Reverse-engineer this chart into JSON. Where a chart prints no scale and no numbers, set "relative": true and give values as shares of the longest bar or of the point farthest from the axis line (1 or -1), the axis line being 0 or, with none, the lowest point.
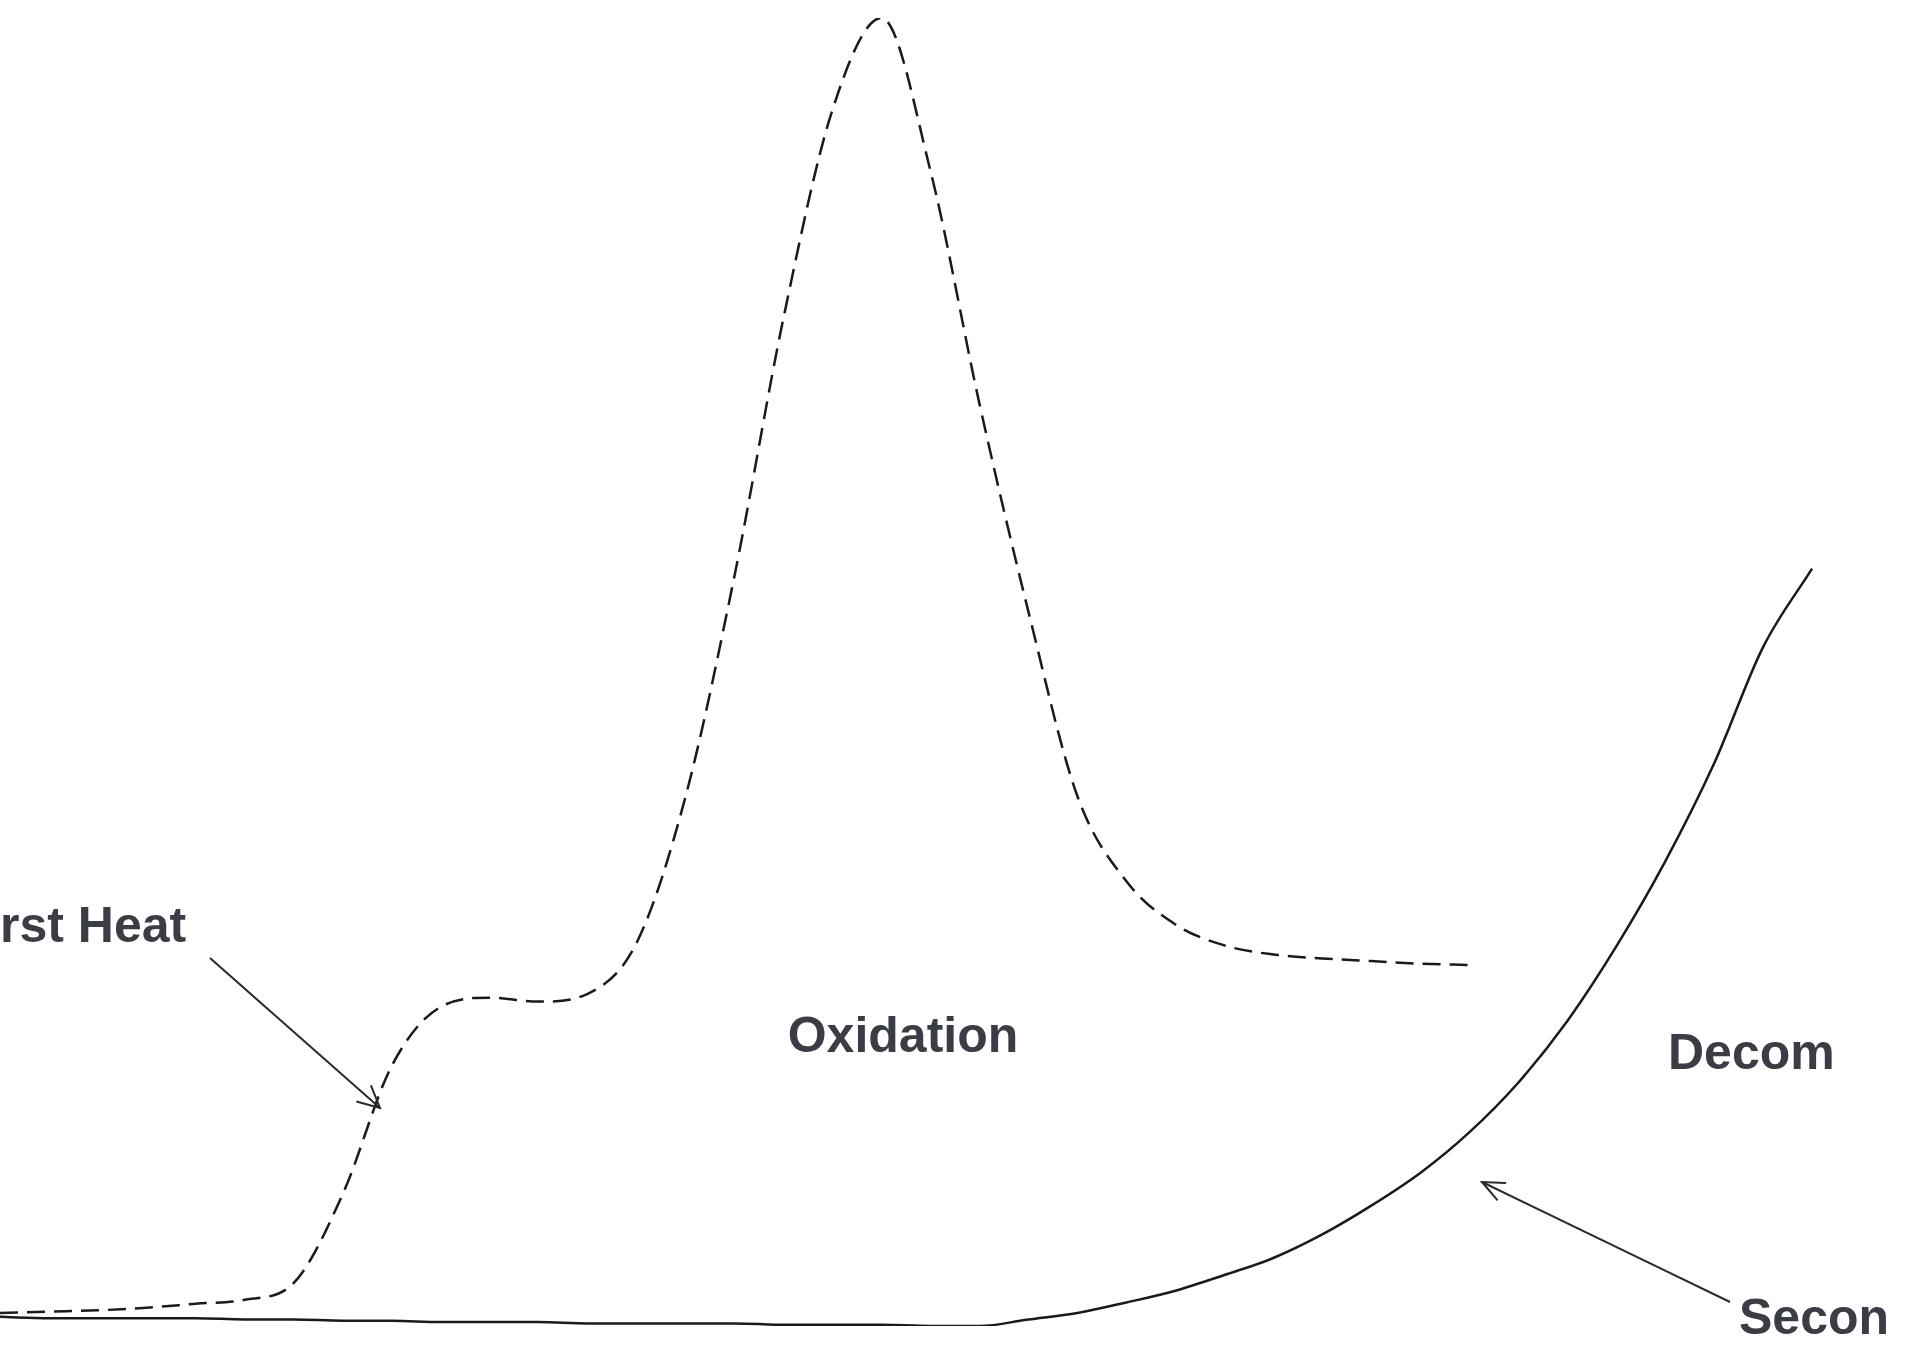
{
  "chart_data": {
    "type": "line",
    "relative": true,
    "legend": false,
    "marker": "none",
    "categories": [
      null,
      null,
      null,
      null,
      null,
      null,
      null,
      null,
      null,
      null,
      null,
      null,
      null,
      null,
      null,
      null,
      null,
      null,
      null,
      null,
      null,
      null,
      null,
      null,
      null,
      null,
      null,
      null,
      null,
      null,
      null,
      null,
      null,
      null,
      null,
      null,
      null,
      null,
      null,
      null
    ],
    "series": [
      {
        "color": "#1a1a1a",
        "line_style": "dashed",
        "values": [
          0.01,
          0.011,
          0.012,
          0.014,
          0.017,
          0.02,
          0.033,
          0.101,
          0.199,
          0.244,
          0.251,
          0.248,
          0.254,
          0.293,
          0.405,
          0.574,
          0.771,
          0.93,
          1.0,
          0.883,
          0.705,
          0.546,
          0.405,
          0.34,
          0.307,
          0.291,
          0.284,
          0.281,
          0.279,
          0.277,
          0.276,
          null,
          null,
          null,
          null,
          null,
          null,
          null,
          null,
          null
        ]
      },
      {
        "color": "#1a1a1a",
        "line_style": "solid",
        "values": [
          0.007,
          0.006,
          0.006,
          0.006,
          0.006,
          0.005,
          0.005,
          0.004,
          0.004,
          0.003,
          0.003,
          0.003,
          0.002,
          0.002,
          0.002,
          0.002,
          0.001,
          0.001,
          0.001,
          0.0,
          0.0,
          0.005,
          0.01,
          0.018,
          0.027,
          0.039,
          0.052,
          0.07,
          0.092,
          0.117,
          0.148,
          0.186,
          0.233,
          0.29,
          0.355,
          0.43,
          0.519,
          0.579,
          null,
          null
        ]
      }
    ],
    "annotations": [
      "rst Heat",
      "Oxidation",
      "Decom",
      "Secon"
    ]
  }
}
